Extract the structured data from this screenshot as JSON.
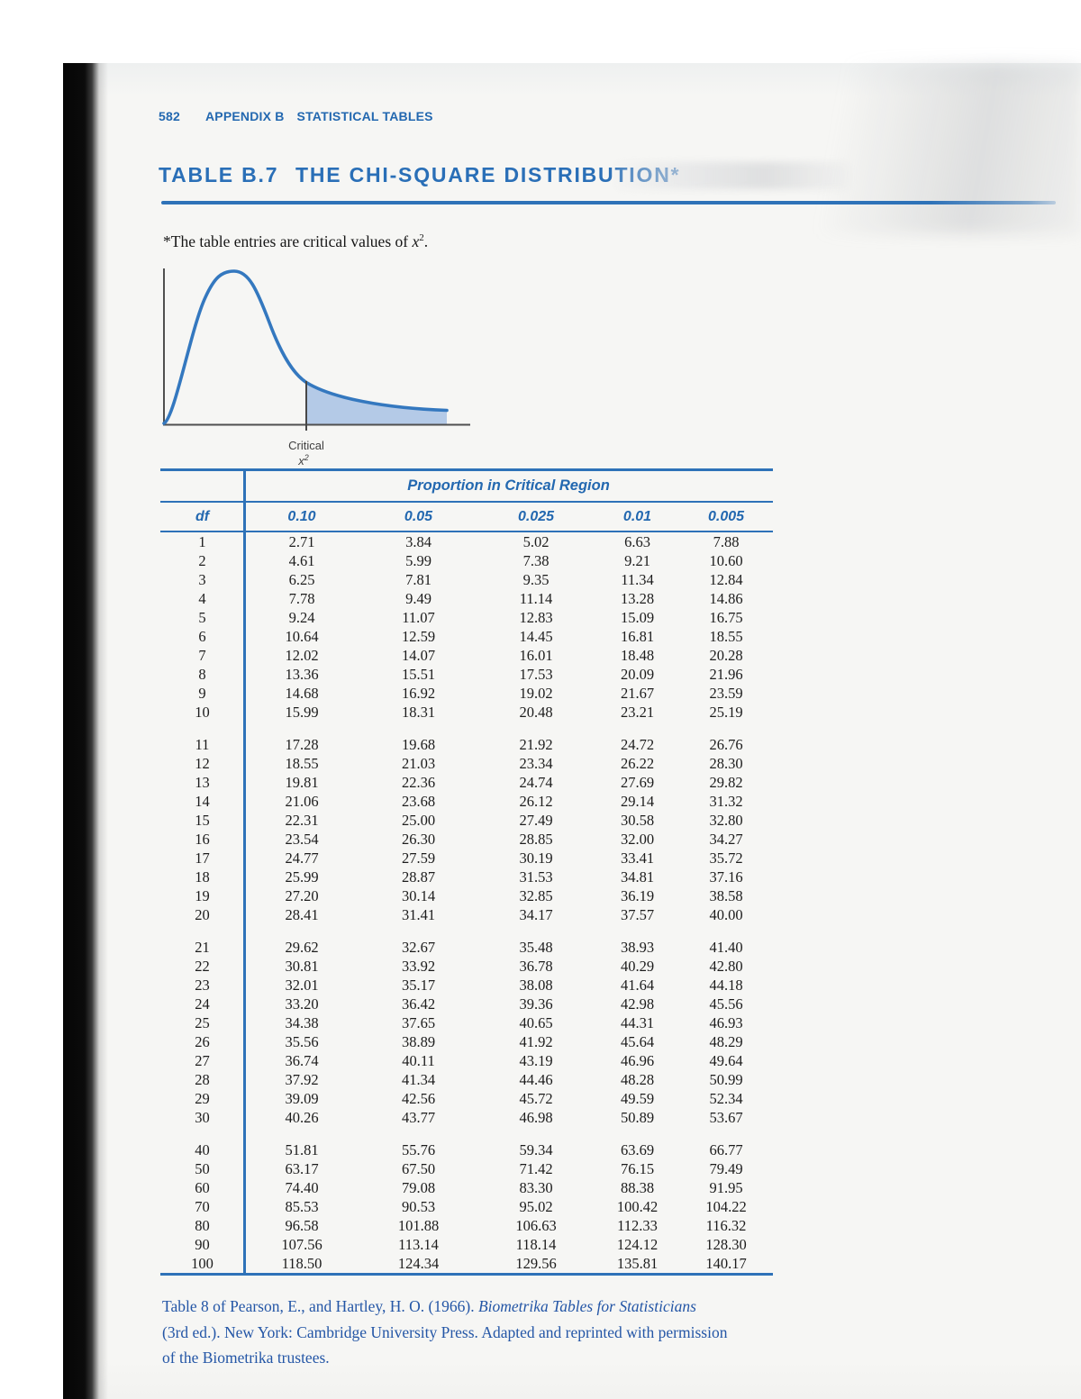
{
  "colors": {
    "accent_blue": "#2368b0",
    "heading_blue": "#2a6fb7",
    "rule_blue": "#2e72b8",
    "curve_blue": "#3478bf",
    "tail_fill_blue": "#b4cae7",
    "citation_blue": "#2456a6",
    "body_text": "#1c1c1c",
    "axis_gray": "#4f4f4f"
  },
  "running_head": {
    "page_number": "582",
    "appendix_label": "APPENDIX B",
    "section_title": "STATISTICAL TABLES"
  },
  "title": {
    "table_label": "TABLE B.7",
    "table_title": "THE CHI-SQUARE DISTRIBUTION*"
  },
  "footnote": {
    "text_before": "*The table entries are critical values of ",
    "variable": "x",
    "exponent": "2",
    "text_after": "."
  },
  "figure": {
    "critical_label": "Critical",
    "variable": "x",
    "exponent": "2"
  },
  "table": {
    "group_header": "Proportion in Critical Region",
    "columns": [
      "df",
      "0.10",
      "0.05",
      "0.025",
      "0.01",
      "0.005"
    ],
    "row_groups": [
      [
        {
          "df": "1",
          "values": [
            "2.71",
            "3.84",
            "5.02",
            "6.63",
            "7.88"
          ]
        },
        {
          "df": "2",
          "values": [
            "4.61",
            "5.99",
            "7.38",
            "9.21",
            "10.60"
          ]
        },
        {
          "df": "3",
          "values": [
            "6.25",
            "7.81",
            "9.35",
            "11.34",
            "12.84"
          ]
        },
        {
          "df": "4",
          "values": [
            "7.78",
            "9.49",
            "11.14",
            "13.28",
            "14.86"
          ]
        },
        {
          "df": "5",
          "values": [
            "9.24",
            "11.07",
            "12.83",
            "15.09",
            "16.75"
          ]
        },
        {
          "df": "6",
          "values": [
            "10.64",
            "12.59",
            "14.45",
            "16.81",
            "18.55"
          ]
        },
        {
          "df": "7",
          "values": [
            "12.02",
            "14.07",
            "16.01",
            "18.48",
            "20.28"
          ]
        },
        {
          "df": "8",
          "values": [
            "13.36",
            "15.51",
            "17.53",
            "20.09",
            "21.96"
          ]
        },
        {
          "df": "9",
          "values": [
            "14.68",
            "16.92",
            "19.02",
            "21.67",
            "23.59"
          ]
        },
        {
          "df": "10",
          "values": [
            "15.99",
            "18.31",
            "20.48",
            "23.21",
            "25.19"
          ]
        }
      ],
      [
        {
          "df": "11",
          "values": [
            "17.28",
            "19.68",
            "21.92",
            "24.72",
            "26.76"
          ]
        },
        {
          "df": "12",
          "values": [
            "18.55",
            "21.03",
            "23.34",
            "26.22",
            "28.30"
          ]
        },
        {
          "df": "13",
          "values": [
            "19.81",
            "22.36",
            "24.74",
            "27.69",
            "29.82"
          ]
        },
        {
          "df": "14",
          "values": [
            "21.06",
            "23.68",
            "26.12",
            "29.14",
            "31.32"
          ]
        },
        {
          "df": "15",
          "values": [
            "22.31",
            "25.00",
            "27.49",
            "30.58",
            "32.80"
          ]
        },
        {
          "df": "16",
          "values": [
            "23.54",
            "26.30",
            "28.85",
            "32.00",
            "34.27"
          ]
        },
        {
          "df": "17",
          "values": [
            "24.77",
            "27.59",
            "30.19",
            "33.41",
            "35.72"
          ]
        },
        {
          "df": "18",
          "values": [
            "25.99",
            "28.87",
            "31.53",
            "34.81",
            "37.16"
          ]
        },
        {
          "df": "19",
          "values": [
            "27.20",
            "30.14",
            "32.85",
            "36.19",
            "38.58"
          ]
        },
        {
          "df": "20",
          "values": [
            "28.41",
            "31.41",
            "34.17",
            "37.57",
            "40.00"
          ]
        }
      ],
      [
        {
          "df": "21",
          "values": [
            "29.62",
            "32.67",
            "35.48",
            "38.93",
            "41.40"
          ]
        },
        {
          "df": "22",
          "values": [
            "30.81",
            "33.92",
            "36.78",
            "40.29",
            "42.80"
          ]
        },
        {
          "df": "23",
          "values": [
            "32.01",
            "35.17",
            "38.08",
            "41.64",
            "44.18"
          ]
        },
        {
          "df": "24",
          "values": [
            "33.20",
            "36.42",
            "39.36",
            "42.98",
            "45.56"
          ]
        },
        {
          "df": "25",
          "values": [
            "34.38",
            "37.65",
            "40.65",
            "44.31",
            "46.93"
          ]
        },
        {
          "df": "26",
          "values": [
            "35.56",
            "38.89",
            "41.92",
            "45.64",
            "48.29"
          ]
        },
        {
          "df": "27",
          "values": [
            "36.74",
            "40.11",
            "43.19",
            "46.96",
            "49.64"
          ]
        },
        {
          "df": "28",
          "values": [
            "37.92",
            "41.34",
            "44.46",
            "48.28",
            "50.99"
          ]
        },
        {
          "df": "29",
          "values": [
            "39.09",
            "42.56",
            "45.72",
            "49.59",
            "52.34"
          ]
        },
        {
          "df": "30",
          "values": [
            "40.26",
            "43.77",
            "46.98",
            "50.89",
            "53.67"
          ]
        }
      ],
      [
        {
          "df": "40",
          "values": [
            "51.81",
            "55.76",
            "59.34",
            "63.69",
            "66.77"
          ]
        },
        {
          "df": "50",
          "values": [
            "63.17",
            "67.50",
            "71.42",
            "76.15",
            "79.49"
          ]
        },
        {
          "df": "60",
          "values": [
            "74.40",
            "79.08",
            "83.30",
            "88.38",
            "91.95"
          ]
        },
        {
          "df": "70",
          "values": [
            "85.53",
            "90.53",
            "95.02",
            "100.42",
            "104.22"
          ]
        },
        {
          "df": "80",
          "values": [
            "96.58",
            "101.88",
            "106.63",
            "112.33",
            "116.32"
          ]
        },
        {
          "df": "90",
          "values": [
            "107.56",
            "113.14",
            "118.14",
            "124.12",
            "128.30"
          ]
        },
        {
          "df": "100",
          "values": [
            "118.50",
            "124.34",
            "129.56",
            "135.81",
            "140.17"
          ]
        }
      ]
    ]
  },
  "citation": {
    "line1_regular": "Table 8 of Pearson, E., and Hartley, H. O. (1966). ",
    "line1_italic": "Biometrika Tables for Statisticians",
    "line2": "(3rd ed.). New York: Cambridge University Press. Adapted and reprinted with permission",
    "line3": "of the Biometrika trustees."
  }
}
